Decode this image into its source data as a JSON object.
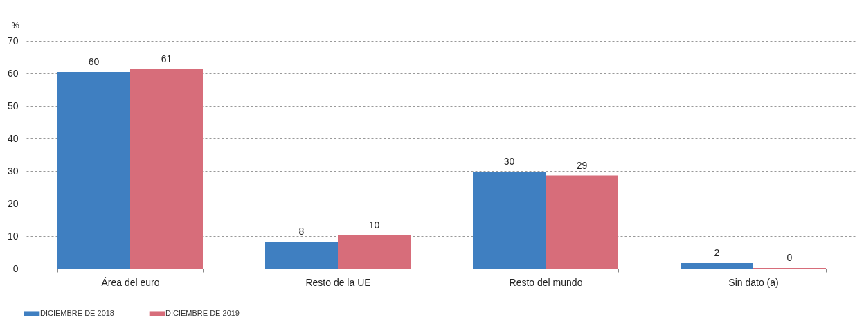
{
  "chart_data": {
    "type": "bar",
    "ylabel": "%",
    "categories": [
      "Área del euro",
      "Resto de la UE",
      "Resto del mundo",
      "Sin dato (a)"
    ],
    "series": [
      {
        "name": "DICIEMBRE DE 2018",
        "color": "#3f7fc1",
        "values": [
          60.4,
          8.3,
          29.8,
          1.7
        ],
        "value_labels": [
          "60",
          "8",
          "30",
          "2"
        ]
      },
      {
        "name": "DICIEMBRE DE 2019",
        "color": "#d76d7a",
        "values": [
          61.3,
          10.2,
          28.6,
          0.2
        ],
        "value_labels": [
          "61",
          "10",
          "29",
          "0"
        ]
      }
    ],
    "ylim": [
      0,
      70
    ],
    "yticks": [
      0,
      10,
      20,
      30,
      40,
      50,
      60,
      70
    ],
    "grid": "y",
    "legend": "bottom left"
  }
}
